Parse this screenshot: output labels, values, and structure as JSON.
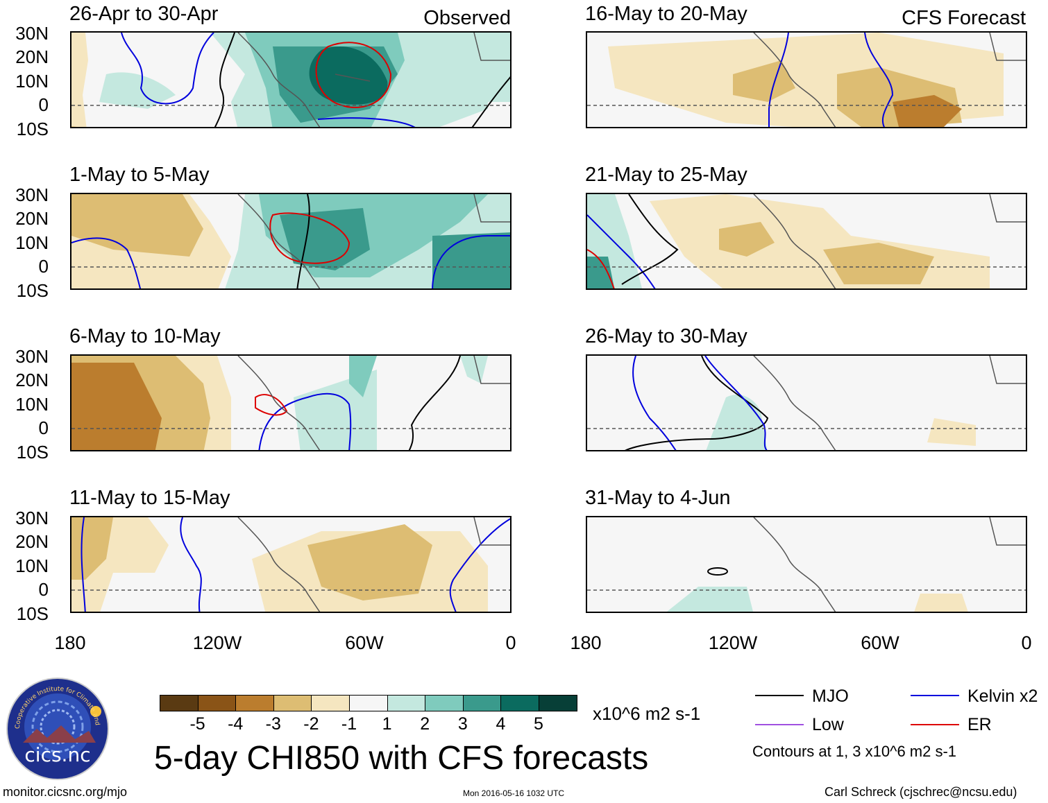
{
  "header": {
    "observed_label": "Observed",
    "forecast_label": "CFS Forecast"
  },
  "panels": [
    {
      "title": "26-Apr to 30-Apr"
    },
    {
      "title": "1-May to 5-May"
    },
    {
      "title": "6-May to 10-May"
    },
    {
      "title": "11-May to 15-May"
    },
    {
      "title": "16-May to 20-May"
    },
    {
      "title": "21-May to 25-May"
    },
    {
      "title": "26-May to 30-May"
    },
    {
      "title": "31-May to 4-Jun"
    }
  ],
  "axes": {
    "lat_ticks": [
      "30N",
      "20N",
      "10N",
      "0",
      "10S"
    ],
    "lon_ticks": [
      "180",
      "120W",
      "60W",
      "0"
    ]
  },
  "colorbar": {
    "labels": [
      "-5",
      "-4",
      "-3",
      "-2",
      "-1",
      "1",
      "2",
      "3",
      "4",
      "5"
    ],
    "colors": [
      "#5a3a12",
      "#8a5417",
      "#bb7d2e",
      "#ddbd73",
      "#f5e6c0",
      "#f6f6f6",
      "#c4e8df",
      "#7fcbbd",
      "#3a9a8c",
      "#0b6b5f",
      "#073f37"
    ],
    "units": "x10^6 m2 s-1"
  },
  "legend": {
    "items": [
      {
        "label": "MJO",
        "color": "#000000"
      },
      {
        "label": "Kelvin x2",
        "color": "#0000dd"
      },
      {
        "label": "Low",
        "color": "#a050e0"
      },
      {
        "label": "ER",
        "color": "#dd0000"
      }
    ],
    "contours_note": "Contours at 1, 3 x10^6 m2 s-1"
  },
  "logo": {
    "text": "cics.nc",
    "ring_text": "Cooperative Institute for Climate and Satellites"
  },
  "main_title": "5-day CHI850 with CFS forecasts",
  "footer": {
    "url": "monitor.cicsnc.org/mjo",
    "timestamp": "Mon 2016-05-16 1032 UTC",
    "author": "Carl Schreck (cjschrec@ncsu.edu)"
  }
}
